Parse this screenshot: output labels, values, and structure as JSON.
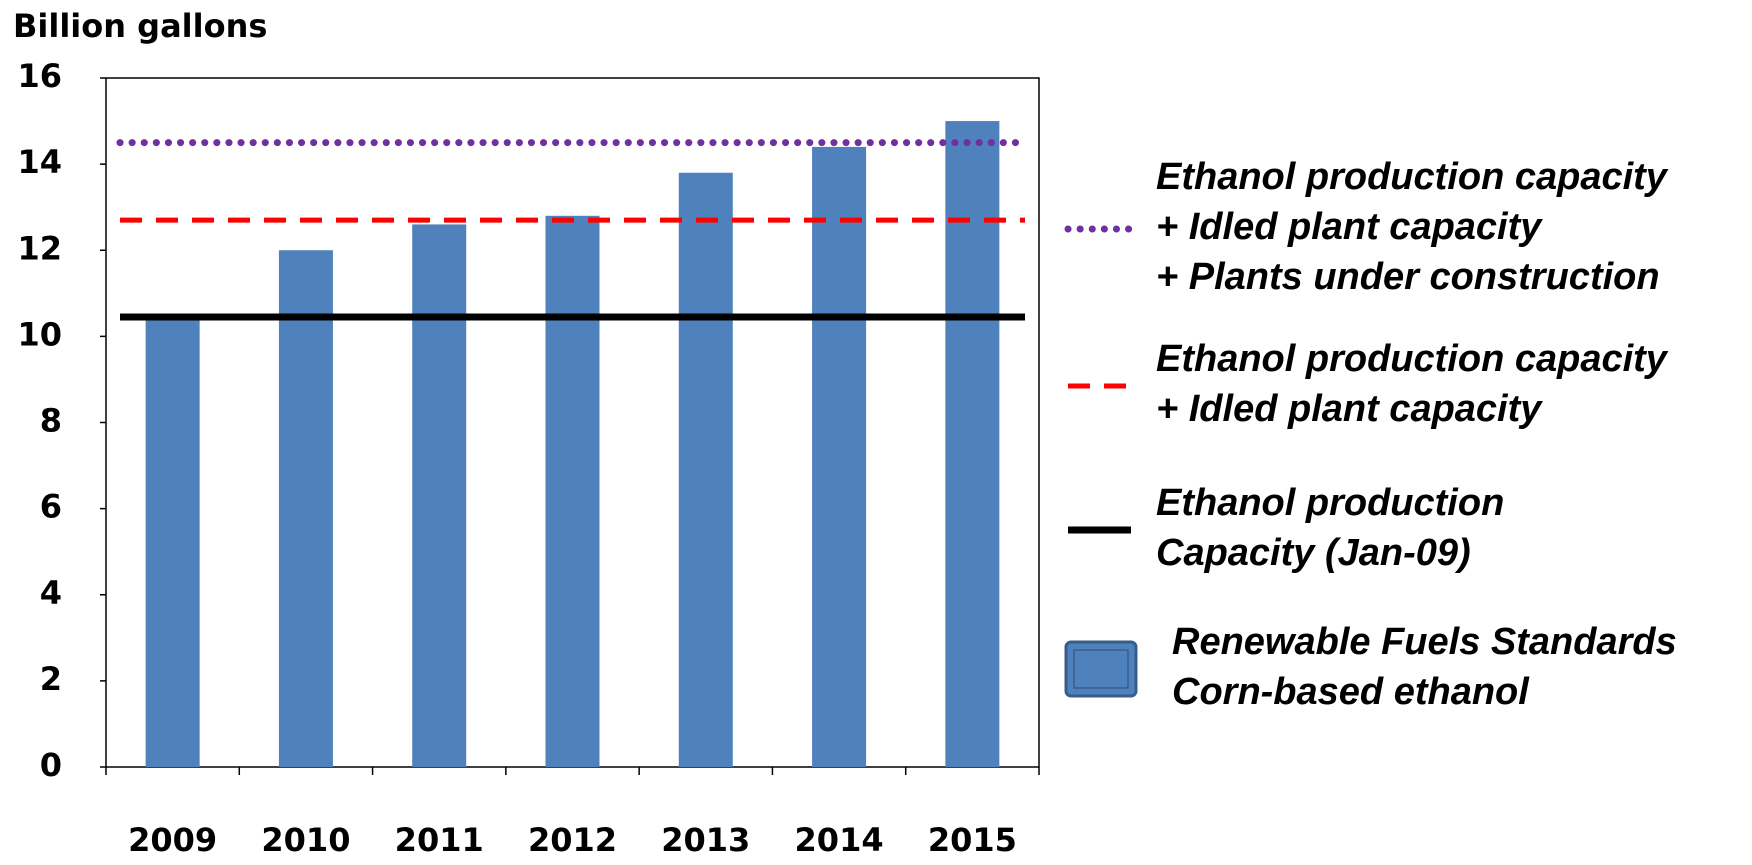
{
  "chart_data": {
    "type": "bar",
    "y_label": "Billion gallons",
    "categories": [
      "2009",
      "2010",
      "2011",
      "2012",
      "2013",
      "2014",
      "2015"
    ],
    "ylim": [
      0,
      16
    ],
    "yticks": [
      0,
      2,
      4,
      6,
      8,
      10,
      12,
      14,
      16
    ],
    "series": [
      {
        "name": "Renewable Fuels Standards\nCorn-based ethanol",
        "type": "bar",
        "color": "#4f81bd",
        "values": [
          10.5,
          12,
          12.6,
          12.8,
          13.8,
          14.4,
          15
        ]
      },
      {
        "name": "Ethanol production capacity\n+ Idled plant capacity\n+ Plants under construction",
        "type": "hline",
        "style": "dotted",
        "color": "#7030a0",
        "value": 14.5
      },
      {
        "name": "Ethanol production capacity\n+ Idled plant capacity",
        "type": "hline",
        "style": "dashed",
        "color": "#ff0000",
        "value": 12.7
      },
      {
        "name": "Ethanol production\nCapacity (Jan-09)",
        "type": "hline",
        "style": "solid",
        "color": "#000000",
        "value": 10.45
      }
    ]
  }
}
